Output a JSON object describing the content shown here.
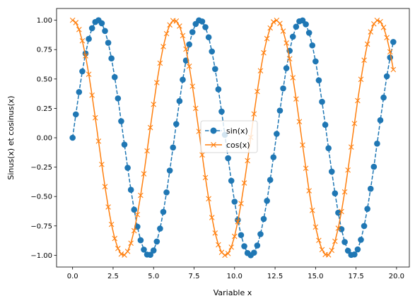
{
  "chart_data": {
    "type": "line",
    "title": "",
    "xlabel": "Variable x",
    "ylabel": "Sinus(x) et cosinus(x)",
    "xlim": [
      -0.99,
      20.79
    ],
    "ylim": [
      -1.1,
      1.1
    ],
    "xticks": [
      0.0,
      2.5,
      5.0,
      7.5,
      10.0,
      12.5,
      15.0,
      17.5,
      20.0
    ],
    "xtick_labels": [
      "0.0",
      "2.5",
      "5.0",
      "7.5",
      "10.0",
      "12.5",
      "15.0",
      "17.5",
      "20.0"
    ],
    "yticks": [
      -1.0,
      -0.75,
      -0.5,
      -0.25,
      0.0,
      0.25,
      0.5,
      0.75,
      1.0
    ],
    "ytick_labels": [
      "−1.00",
      "−0.75",
      "−0.50",
      "−0.25",
      "0.00",
      "0.25",
      "0.50",
      "0.75",
      "1.00"
    ],
    "grid": false,
    "legend_placement": "center",
    "x": [
      0.0,
      0.2,
      0.4,
      0.6,
      0.8,
      1.0,
      1.2,
      1.4,
      1.6,
      1.8,
      2.0,
      2.2,
      2.4,
      2.6,
      2.8,
      3.0,
      3.2,
      3.4,
      3.6,
      3.8,
      4.0,
      4.2,
      4.4,
      4.6,
      4.8,
      5.0,
      5.2,
      5.4,
      5.6,
      5.8,
      6.0,
      6.2,
      6.4,
      6.6,
      6.8,
      7.0,
      7.2,
      7.4,
      7.6,
      7.8,
      8.0,
      8.2,
      8.4,
      8.6,
      8.8,
      9.0,
      9.2,
      9.4,
      9.6,
      9.8,
      10.0,
      10.2,
      10.4,
      10.6,
      10.8,
      11.0,
      11.2,
      11.4,
      11.6,
      11.8,
      12.0,
      12.2,
      12.4,
      12.6,
      12.8,
      13.0,
      13.2,
      13.4,
      13.6,
      13.8,
      14.0,
      14.2,
      14.4,
      14.6,
      14.8,
      15.0,
      15.2,
      15.4,
      15.6,
      15.8,
      16.0,
      16.2,
      16.4,
      16.6,
      16.8,
      17.0,
      17.2,
      17.4,
      17.6,
      17.8,
      18.0,
      18.2,
      18.4,
      18.6,
      18.8,
      19.0,
      19.2,
      19.4,
      19.6,
      19.8
    ],
    "series": [
      {
        "name": "sin(x)",
        "color": "#1f77b4",
        "style": "dashed line with circle markers",
        "values": [
          0.0,
          0.199,
          0.389,
          0.565,
          0.717,
          0.841,
          0.932,
          0.985,
          1.0,
          0.974,
          0.909,
          0.808,
          0.675,
          0.516,
          0.335,
          0.141,
          -0.058,
          -0.256,
          -0.443,
          -0.612,
          -0.757,
          -0.872,
          -0.952,
          -0.994,
          -0.996,
          -0.959,
          -0.883,
          -0.773,
          -0.631,
          -0.465,
          -0.279,
          -0.083,
          0.117,
          0.312,
          0.494,
          0.657,
          0.794,
          0.899,
          0.968,
          0.999,
          0.989,
          0.941,
          0.855,
          0.734,
          0.585,
          0.412,
          0.223,
          0.025,
          -0.174,
          -0.366,
          -0.544,
          -0.7,
          -0.828,
          -0.923,
          -0.981,
          -1.0,
          -0.978,
          -0.917,
          -0.82,
          -0.691,
          -0.537,
          -0.359,
          -0.166,
          0.033,
          0.231,
          0.42,
          0.592,
          0.74,
          0.86,
          0.945,
          0.991,
          0.998,
          0.965,
          0.893,
          0.786,
          0.65,
          0.489,
          0.306,
          0.11,
          -0.089,
          -0.288,
          -0.473,
          -0.638,
          -0.778,
          -0.887,
          -0.961,
          -0.997,
          -0.993,
          -0.95,
          -0.868,
          -0.751,
          -0.605,
          -0.434,
          -0.247,
          -0.05,
          0.149,
          0.342,
          0.523,
          0.683,
          0.815
        ]
      },
      {
        "name": "cos(x)",
        "color": "#ff7f0e",
        "style": "solid line with x markers",
        "values": [
          1.0,
          0.98,
          0.921,
          0.825,
          0.697,
          0.54,
          0.362,
          0.17,
          -0.029,
          -0.227,
          -0.416,
          -0.589,
          -0.737,
          -0.857,
          -0.942,
          -0.99,
          -0.998,
          -0.967,
          -0.897,
          -0.791,
          -0.654,
          -0.49,
          -0.307,
          -0.112,
          0.087,
          0.284,
          0.469,
          0.635,
          0.776,
          0.886,
          0.96,
          0.997,
          0.993,
          0.95,
          0.869,
          0.754,
          0.608,
          0.438,
          0.25,
          0.054,
          -0.146,
          -0.339,
          -0.519,
          -0.679,
          -0.811,
          -0.911,
          -0.975,
          -1.0,
          -0.985,
          -0.931,
          -0.839,
          -0.714,
          -0.56,
          -0.385,
          -0.195,
          0.004,
          0.203,
          0.394,
          0.57,
          0.723,
          0.844,
          0.934,
          0.986,
          0.999,
          0.973,
          0.907,
          0.806,
          0.672,
          0.511,
          0.33,
          0.137,
          -0.062,
          -0.26,
          -0.451,
          -0.618,
          -0.76,
          -0.873,
          -0.952,
          -0.994,
          -0.997,
          -0.958,
          -0.881,
          -0.77,
          -0.628,
          -0.461,
          -0.275,
          -0.079,
          0.121,
          0.316,
          0.497,
          0.66,
          0.797,
          0.901,
          0.969,
          0.999,
          0.988,
          0.939,
          0.852,
          0.731,
          0.58
        ]
      }
    ]
  }
}
